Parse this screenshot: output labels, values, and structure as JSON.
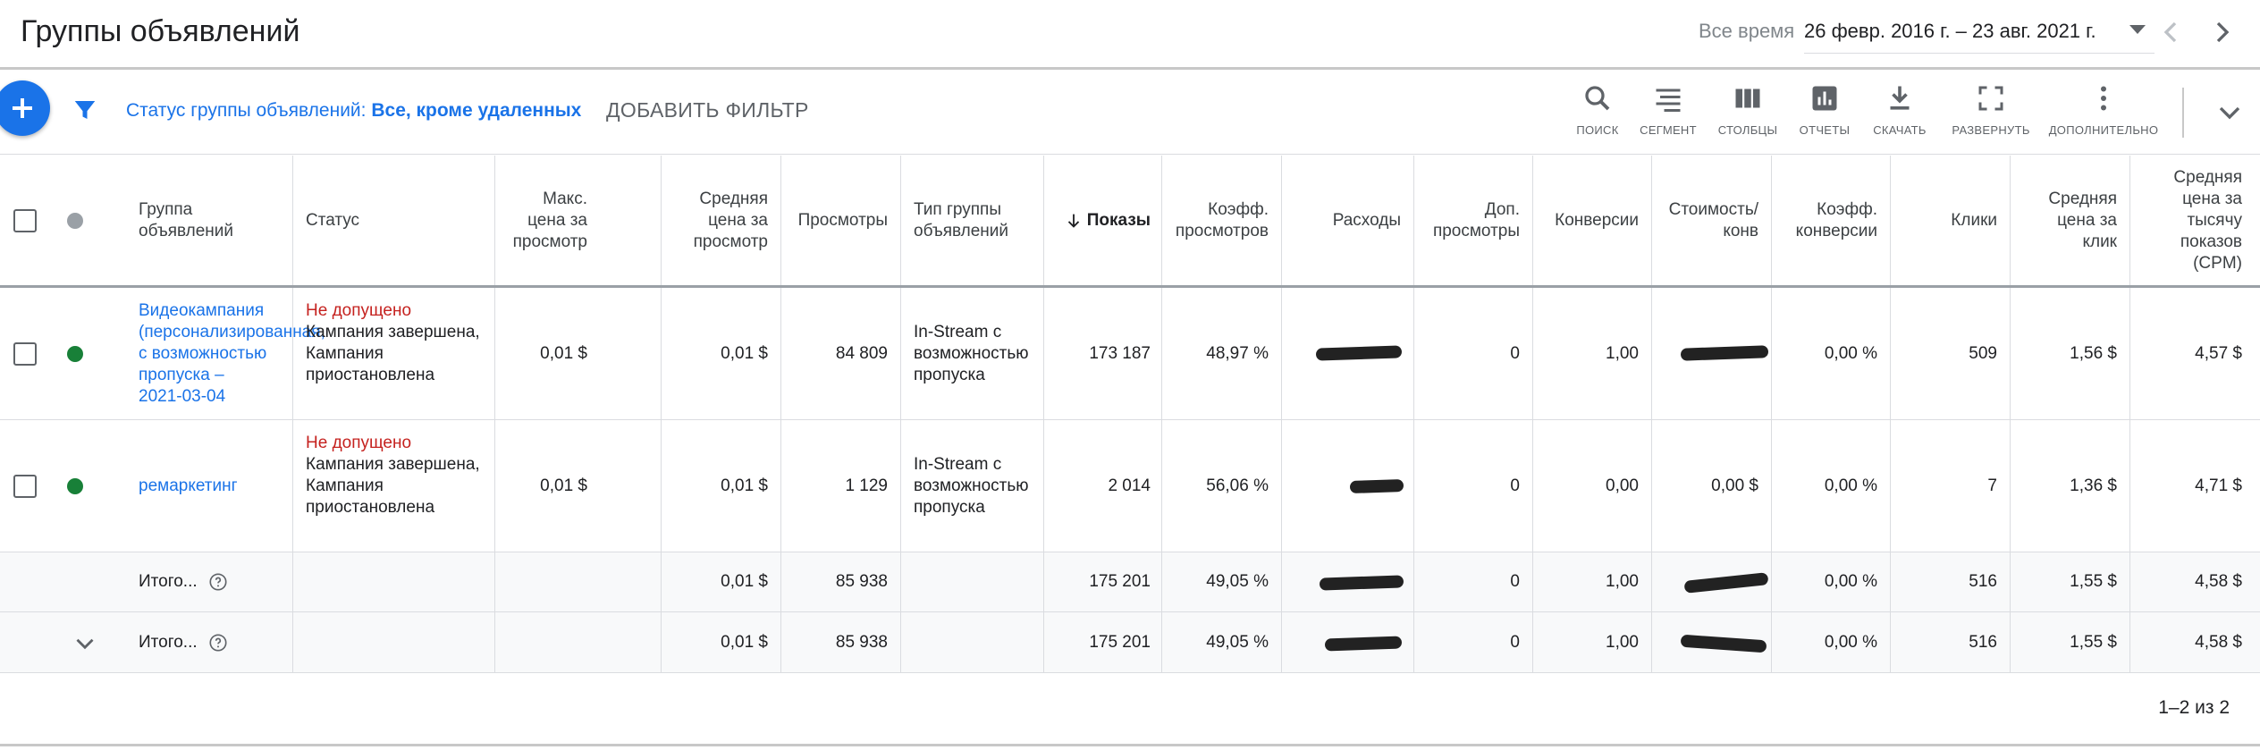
{
  "header": {
    "title": "Группы объявлений",
    "date_label": "Все время",
    "date_range": "26 февр. 2016 г. – 23 авг. 2021 г."
  },
  "toolbar": {
    "filter_prefix": "Статус группы объявлений: ",
    "filter_value": "Все, кроме удаленных",
    "add_filter": "ДОБАВИТЬ ФИЛЬТР",
    "tools": [
      {
        "label": "ПОИСК",
        "icon": "search-icon"
      },
      {
        "label": "СЕГМЕНТ",
        "icon": "segment-icon"
      },
      {
        "label": "СТОЛБЦЫ",
        "icon": "columns-icon"
      },
      {
        "label": "ОТЧЕТЫ",
        "icon": "reports-icon"
      },
      {
        "label": "СКАЧАТЬ",
        "icon": "download-icon"
      },
      {
        "label": "РАЗВЕРНУТЬ",
        "icon": "expand-icon"
      },
      {
        "label": "ДОПОЛНИТЕЛЬНО",
        "icon": "more-icon"
      }
    ]
  },
  "table": {
    "headers": {
      "group": "Группа объявлений",
      "status": "Статус",
      "max_cpv": "Макс. цена за просмотр",
      "avg_cpv": "Средняя цена за просмотр",
      "views": "Просмотры",
      "group_type": "Тип группы объявлений",
      "impressions": "Показы",
      "view_rate": "Коэфф. просмотров",
      "cost": "Расходы",
      "extra_views": "Доп. просмотры",
      "conversions": "Конверсии",
      "cost_per_conv": "Стоимость/ конв",
      "conv_rate": "Коэфф. конверсии",
      "clicks": "Клики",
      "avg_cpc": "Средняя цена за клик",
      "avg_cpm": "Средняя цена за тысячу показов (CPM)"
    },
    "rows": [
      {
        "group": "Видеокампания (персонализированная, с возможностью пропуска – 2021-03-04",
        "status_alert": "Не допущено",
        "status_detail": "Кампания завершена, Кампания приостановлена",
        "max_cpv": "0,01 $",
        "avg_cpv": "0,01 $",
        "views": "84 809",
        "group_type": "In-Stream с возможностью пропуска",
        "impressions": "173 187",
        "view_rate": "48,97 %",
        "extra_views": "0",
        "conversions": "1,00",
        "conv_rate": "0,00 %",
        "clicks": "509",
        "avg_cpc": "1,56 $",
        "avg_cpm": "4,57 $",
        "status_color": "#188038"
      },
      {
        "group": "ремаркетинг",
        "status_alert": "Не допущено",
        "status_detail": "Кампания завершена, Кампания приостановлена",
        "max_cpv": "0,01 $",
        "avg_cpv": "0,01 $",
        "views": "1 129",
        "group_type": "In-Stream с возможностью пропуска",
        "impressions": "2 014",
        "view_rate": "56,06 %",
        "extra_views": "0",
        "conversions": "0,00",
        "cost_per_conv": "0,00 $",
        "conv_rate": "0,00 %",
        "clicks": "7",
        "avg_cpc": "1,36 $",
        "avg_cpm": "4,71 $",
        "status_color": "#188038"
      }
    ],
    "totals": [
      {
        "label": "Итого...",
        "avg_cpv": "0,01 $",
        "views": "85 938",
        "impressions": "175 201",
        "view_rate": "49,05 %",
        "extra_views": "0",
        "conversions": "1,00",
        "conv_rate": "0,00 %",
        "clicks": "516",
        "avg_cpc": "1,55 $",
        "avg_cpm": "4,58 $"
      },
      {
        "label": "Итого...",
        "avg_cpv": "0,01 $",
        "views": "85 938",
        "impressions": "175 201",
        "view_rate": "49,05 %",
        "extra_views": "0",
        "conversions": "1,00",
        "conv_rate": "0,00 %",
        "clicks": "516",
        "avg_cpc": "1,55 $",
        "avg_cpm": "4,58 $"
      }
    ]
  },
  "pager": "1–2 из 2",
  "colors": {
    "accent": "#1a73e8",
    "alert": "#c5221f",
    "enabled_dot": "#188038",
    "header_dot": "#9aa0a6"
  }
}
